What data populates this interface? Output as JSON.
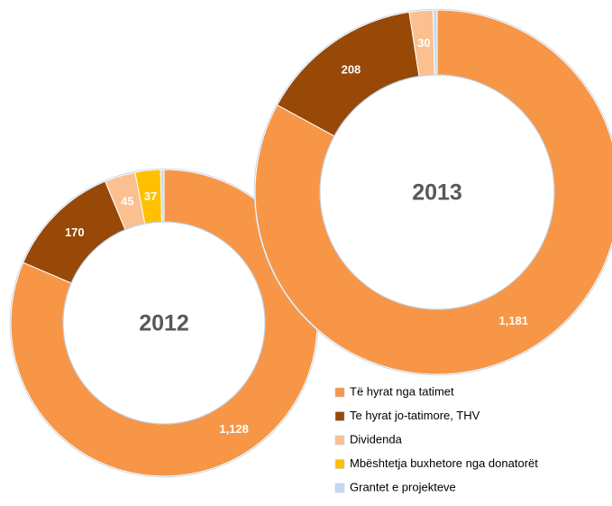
{
  "chart_data": [
    {
      "type": "pie",
      "title": "2012",
      "categories": [
        "Të hyrat nga tatimet",
        "Te hyrat jo-tatimore,  THV",
        "Dividenda",
        "Mbështetja buxhetore nga donatorët",
        "Grantet e projekteve"
      ],
      "values": [
        1128,
        170,
        45,
        37,
        5
      ],
      "value_labels": [
        "1,128",
        "170",
        "45",
        "37",
        null
      ],
      "colors": [
        "#F79646",
        "#984807",
        "#FAC090",
        "#FFC000",
        "#C6D9F1"
      ]
    },
    {
      "type": "pie",
      "title": "2013",
      "categories": [
        "Të hyrat nga tatimet",
        "Te hyrat jo-tatimore,  THV",
        "Dividenda",
        "Mbështetja buxhetore nga donatorët",
        "Grantet e projekteve"
      ],
      "values": [
        1181,
        208,
        30,
        0,
        5
      ],
      "value_labels": [
        "1,181",
        "208",
        "30",
        null,
        null
      ],
      "colors": [
        "#F79646",
        "#984807",
        "#FAC090",
        "#FFC000",
        "#C6D9F1"
      ],
      "legend": "bottom-right"
    }
  ]
}
